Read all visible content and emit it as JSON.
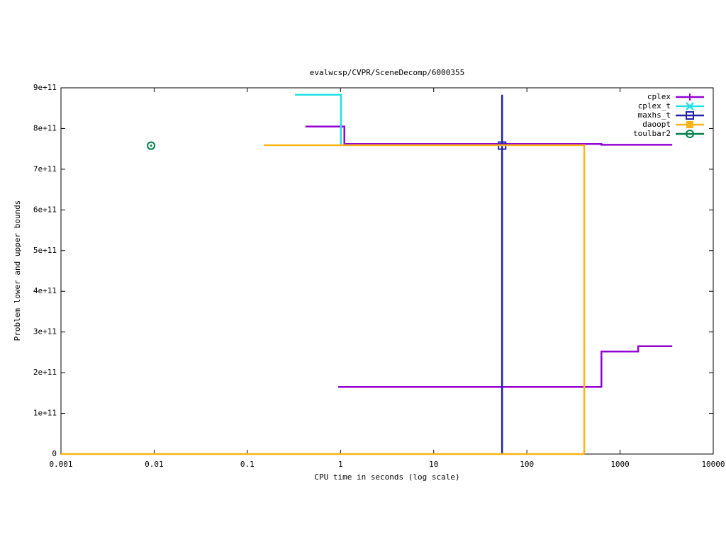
{
  "chart_data": {
    "type": "line",
    "title": "evalwcsp/CVPR/SceneDecomp/6000355",
    "x_label": "CPU time in seconds (log scale)",
    "y_label": "Problem lower and upper bounds",
    "xlog": true,
    "xlim": [
      0.001,
      10000
    ],
    "xticks": [
      0.001,
      0.01,
      0.1,
      1,
      10,
      100,
      1000,
      10000
    ],
    "ylim": [
      0,
      900000000000
    ],
    "yticks": [
      0,
      {
        "value": 100000000000,
        "label": "1e+11"
      },
      {
        "value": 200000000000,
        "label": "2e+11"
      },
      {
        "value": 300000000000,
        "label": "3e+11"
      },
      {
        "value": 400000000000,
        "label": "4e+11"
      },
      {
        "value": 500000000000,
        "label": "5e+11"
      },
      {
        "value": 600000000000,
        "label": "6e+11"
      },
      {
        "value": 700000000000,
        "label": "7e+11"
      },
      {
        "value": 800000000000,
        "label": "8e+11"
      },
      {
        "value": 900000000000,
        "label": "9e+11"
      }
    ],
    "legend": "top-right",
    "series": [
      {
        "name": "cplex",
        "color": "#9400d3",
        "marker": "plus",
        "x": [
          0.42,
          1.1,
          1.1,
          631,
          631,
          3630,
          null,
          0.946,
          631,
          631,
          1566,
          1566,
          3630
        ],
        "values": [
          805000000000,
          805000000000,
          762000000000,
          762000000000,
          760000000000,
          760000000000,
          null,
          165000000000,
          165000000000,
          252000000000,
          252000000000,
          265000000000,
          265000000000
        ]
      },
      {
        "name": "cplex_t",
        "color": "#22e0e8",
        "marker": "cross",
        "x": [
          0.325,
          1.01,
          1.01
        ],
        "values": [
          883000000000,
          883000000000,
          760000000000
        ]
      },
      {
        "name": "maxhs_t",
        "color": "#2020aa",
        "marker": "square",
        "x": [
          54.2,
          54.2
        ],
        "values": [
          0,
          883000000000
        ],
        "markers": {
          "x": [
            54.2
          ],
          "values": [
            758000000000
          ]
        }
      },
      {
        "name": "daoopt",
        "color": "#f8b418",
        "marker": "filled-square",
        "x": [
          0.15,
          413,
          413,
          null,
          0.001,
          413
        ],
        "values": [
          759000000000,
          759000000000,
          0,
          null,
          0,
          0
        ]
      },
      {
        "name": "toulbar2",
        "color": "#00804a",
        "marker": "circle",
        "x": [
          0.00927
        ],
        "values": [
          758000000000
        ],
        "line": false
      }
    ]
  }
}
